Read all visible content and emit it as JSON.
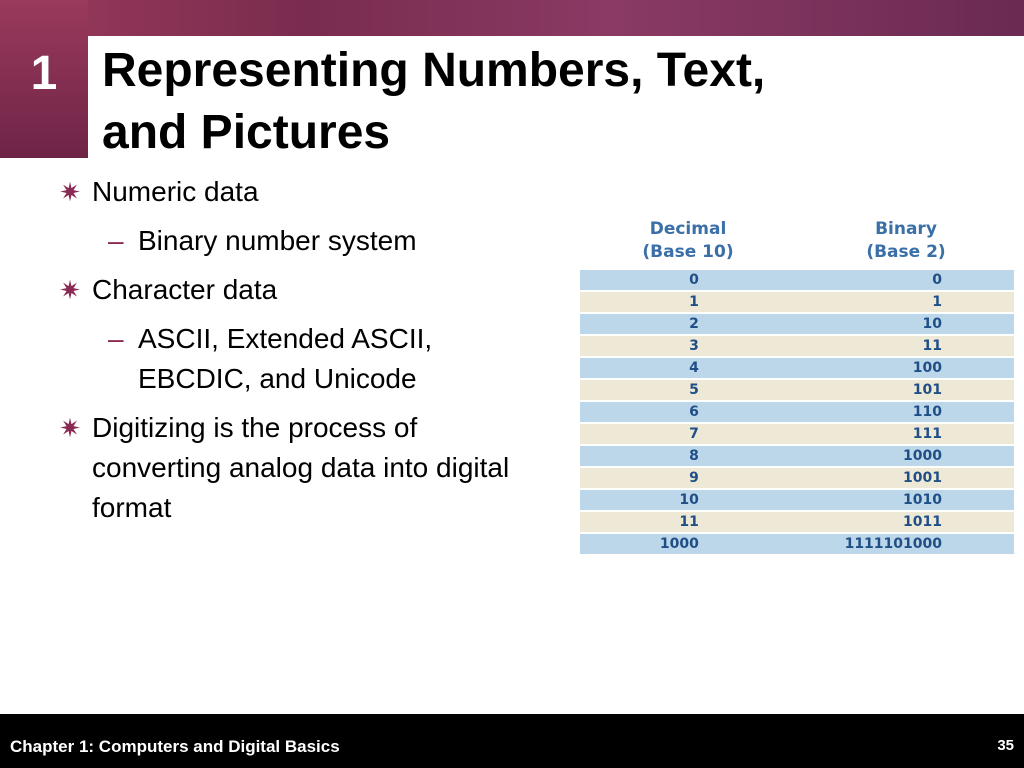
{
  "slide": {
    "chapter_number": "1",
    "title_line1": "Representing Numbers, Text,",
    "title_line2": "and Pictures"
  },
  "bullets": {
    "bullet_glyph": "✷",
    "dash_glyph": "–",
    "items": [
      {
        "text": "Numeric data",
        "sub": [
          "Binary number system"
        ]
      },
      {
        "text": "Character data",
        "sub": [
          "ASCII, Extended ASCII, EBCDIC, and Unicode"
        ]
      },
      {
        "text": "Digitizing is the process of converting analog data into digital format",
        "sub": []
      }
    ]
  },
  "table": {
    "decimal_header_line1": "Decimal",
    "decimal_header_line2": "(Base 10)",
    "binary_header_line1": "Binary",
    "binary_header_line2": "(Base 2)",
    "rows": [
      {
        "decimal": "0",
        "binary": "0"
      },
      {
        "decimal": "1",
        "binary": "1"
      },
      {
        "decimal": "2",
        "binary": "10"
      },
      {
        "decimal": "3",
        "binary": "11"
      },
      {
        "decimal": "4",
        "binary": "100"
      },
      {
        "decimal": "5",
        "binary": "101"
      },
      {
        "decimal": "6",
        "binary": "110"
      },
      {
        "decimal": "7",
        "binary": "111"
      },
      {
        "decimal": "8",
        "binary": "1000"
      },
      {
        "decimal": "9",
        "binary": "1001"
      },
      {
        "decimal": "10",
        "binary": "1010"
      },
      {
        "decimal": "11",
        "binary": "1011"
      },
      {
        "decimal": "1000",
        "binary": "1111101000"
      }
    ],
    "row_colors": [
      "#bcd6ea",
      "#eee8d6"
    ]
  },
  "footer": {
    "chapter_text": "Chapter 1: Computers and Digital Basics",
    "page_number": "35"
  },
  "colors": {
    "accent": "#8a2a52",
    "header_blue": "#3a6fa8",
    "footer_bg": "#000000"
  }
}
